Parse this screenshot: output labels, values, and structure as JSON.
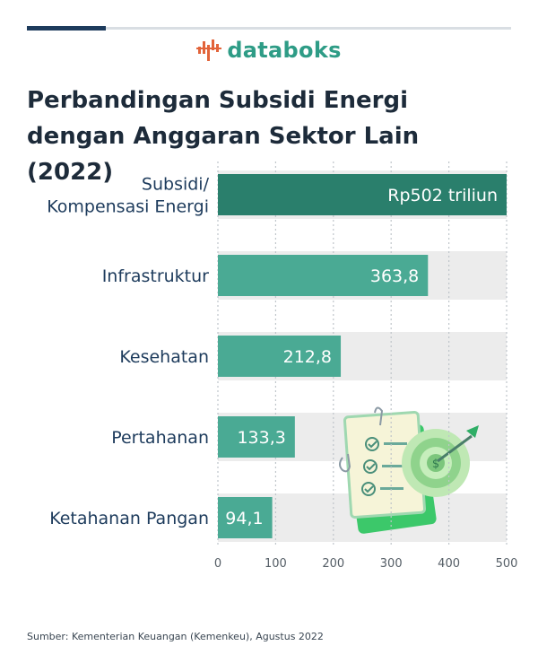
{
  "brand": {
    "name": "databoks",
    "accent": "#2e9c86"
  },
  "title": "Perbandingan Subsidi Energi dengan Anggaran Sektor Lain (2022)",
  "source": "Sumber: Kementerian Keuangan (Kemenkeu), Agustus 2022",
  "chart_data": {
    "type": "bar",
    "orientation": "horizontal",
    "categories": [
      "Subsidi/ Kompensasi Energi",
      "Infrastruktur",
      "Kesehatan",
      "Pertahanan",
      "Ketahanan Pangan"
    ],
    "category_lines": [
      [
        "Subsidi/",
        "Kompensasi Energi"
      ],
      [
        "Infrastruktur"
      ],
      [
        "Kesehatan"
      ],
      [
        "Pertahanan"
      ],
      [
        "Ketahanan Pangan"
      ]
    ],
    "values": [
      502,
      363.8,
      212.8,
      133.3,
      94.1
    ],
    "value_labels": [
      "Rp502 triliun",
      "363,8",
      "212,8",
      "133,3",
      "94,1"
    ],
    "xlim": [
      0,
      500
    ],
    "xticks": [
      "0",
      "100",
      "200",
      "300",
      "400",
      "500"
    ],
    "grid": true,
    "colors": {
      "highlight": "#2a7f6c",
      "bar": "#4aaa94",
      "track": "#ececec",
      "label": "#1d3b5c",
      "tick": "#555e66"
    }
  }
}
